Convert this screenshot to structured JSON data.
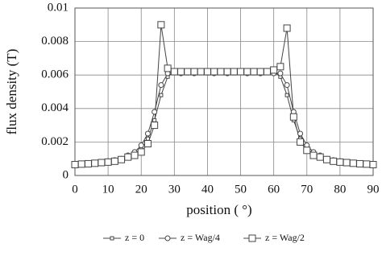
{
  "chart_data": {
    "type": "line",
    "x_label": "position ( °)",
    "y_label": "flux density (T)",
    "x": [
      0,
      2,
      4,
      6,
      8,
      10,
      12,
      14,
      16,
      18,
      20,
      22,
      24,
      26,
      28,
      30,
      32,
      34,
      36,
      38,
      40,
      42,
      44,
      46,
      48,
      50,
      52,
      54,
      56,
      58,
      60,
      62,
      64,
      66,
      68,
      70,
      72,
      74,
      76,
      78,
      80,
      82,
      84,
      86,
      88,
      90
    ],
    "series": [
      {
        "name": "z = 0",
        "color": "#444444",
        "marker": "square",
        "marker_size": 4,
        "values": [
          0.0007,
          0.0007,
          0.00072,
          0.00075,
          0.0008,
          0.00085,
          0.0009,
          0.001,
          0.0011,
          0.0013,
          0.0016,
          0.0022,
          0.0033,
          0.0048,
          0.0059,
          0.0062,
          0.0062,
          0.0061,
          0.0062,
          0.0062,
          0.0061,
          0.0062,
          0.0062,
          0.0062,
          0.0061,
          0.0062,
          0.0062,
          0.0061,
          0.0062,
          0.0062,
          0.0062,
          0.0059,
          0.0048,
          0.0033,
          0.0022,
          0.0016,
          0.0013,
          0.0011,
          0.001,
          0.0009,
          0.00085,
          0.0008,
          0.00075,
          0.00072,
          0.0007,
          0.0007
        ]
      },
      {
        "name": "z = Wag/4",
        "color": "#444444",
        "marker": "circle",
        "marker_size": 6,
        "values": [
          0.00068,
          0.0007,
          0.00072,
          0.00076,
          0.0008,
          0.00086,
          0.00092,
          0.001,
          0.0012,
          0.0014,
          0.0018,
          0.0025,
          0.0038,
          0.0054,
          0.0061,
          0.0062,
          0.0061,
          0.0062,
          0.0061,
          0.0062,
          0.0062,
          0.0061,
          0.0062,
          0.0061,
          0.0062,
          0.0062,
          0.0061,
          0.0062,
          0.0061,
          0.0062,
          0.0061,
          0.0061,
          0.0054,
          0.0038,
          0.0025,
          0.0018,
          0.0014,
          0.0012,
          0.001,
          0.00092,
          0.00086,
          0.0008,
          0.00076,
          0.00072,
          0.0007,
          0.00068
        ]
      },
      {
        "name": "z = Wag/2",
        "color": "#444444",
        "marker": "square",
        "marker_size": 8,
        "values": [
          0.00065,
          0.00068,
          0.0007,
          0.00073,
          0.00077,
          0.0008,
          0.00085,
          0.00095,
          0.0011,
          0.0012,
          0.0014,
          0.0019,
          0.003,
          0.009,
          0.0064,
          0.0062,
          0.0062,
          0.0062,
          0.0062,
          0.0062,
          0.0062,
          0.0062,
          0.0062,
          0.0062,
          0.0062,
          0.0062,
          0.0062,
          0.0062,
          0.0062,
          0.0062,
          0.0063,
          0.0065,
          0.0088,
          0.0035,
          0.002,
          0.0015,
          0.0012,
          0.0011,
          0.00095,
          0.00085,
          0.0008,
          0.00077,
          0.00073,
          0.0007,
          0.00068,
          0.00065
        ]
      }
    ],
    "xlim": [
      0,
      90
    ],
    "xticks": [
      0,
      10,
      20,
      30,
      40,
      50,
      60,
      70,
      80,
      90
    ],
    "ylim": [
      0,
      0.01
    ],
    "yticks": [
      0,
      0.002,
      0.004,
      0.006,
      0.008,
      0.01
    ],
    "grid": true,
    "legend": "bottom"
  }
}
